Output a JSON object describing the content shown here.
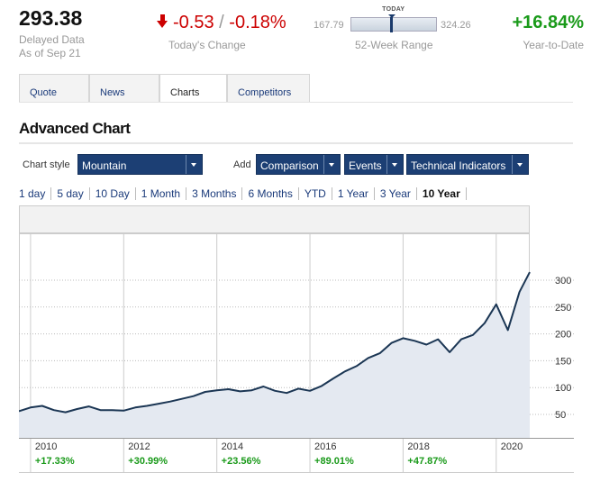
{
  "quote": {
    "price": "293.38",
    "delayed": "Delayed Data",
    "asof": "As of Sep 21",
    "change": "-0.53",
    "change_sep": "/",
    "change_pct": "-0.18%",
    "change_label": "Today's Change",
    "range_low": "167.79",
    "range_high": "324.26",
    "range_today": "TODAY",
    "range_label": "52-Week Range",
    "range_today_fraction": 0.46,
    "ytd": "+16.84%",
    "ytd_label": "Year-to-Date"
  },
  "tabs": [
    {
      "label": "Quote"
    },
    {
      "label": "News"
    },
    {
      "label": "Charts"
    },
    {
      "label": "Competitors"
    }
  ],
  "section_title": "Advanced Chart",
  "controls": {
    "chart_style_label": "Chart style",
    "chart_style_value": "Mountain",
    "add_label": "Add",
    "comparison": "Comparison",
    "events": "Events",
    "technical": "Technical Indicators"
  },
  "ranges": [
    "1 day",
    "5 day",
    "10 Day",
    "1 Month",
    "3 Months",
    "6 Months",
    "YTD",
    "1 Year",
    "3 Year",
    "10 Year"
  ],
  "selected_range": "10 Year",
  "colors": {
    "accent_dark": "#1c3f74",
    "negative": "#cc0000",
    "positive": "#1a9a1a",
    "line": "#1b3654",
    "fill": "#e4e9f1"
  },
  "chart_data": {
    "type": "area",
    "ylim": [
      0,
      330
    ],
    "yticks": [
      "300",
      "250",
      "200",
      "150",
      "100",
      "50"
    ],
    "x_years": [
      "2010",
      "2012",
      "2014",
      "2016",
      "2018",
      "2020"
    ],
    "year_returns": [
      "+17.33%",
      "+30.99%",
      "+23.56%",
      "+89.01%",
      "+47.87%"
    ],
    "x": [
      2009.75,
      2010.0,
      2010.25,
      2010.5,
      2010.75,
      2011.0,
      2011.25,
      2011.5,
      2011.75,
      2012.0,
      2012.25,
      2012.5,
      2012.75,
      2013.0,
      2013.25,
      2013.5,
      2013.75,
      2014.0,
      2014.25,
      2014.5,
      2014.75,
      2015.0,
      2015.25,
      2015.5,
      2015.75,
      2016.0,
      2016.25,
      2016.5,
      2016.75,
      2017.0,
      2017.25,
      2017.5,
      2017.75,
      2018.0,
      2018.25,
      2018.5,
      2018.75,
      2019.0,
      2019.25,
      2019.5,
      2019.75,
      2020.0,
      2020.25,
      2020.5,
      2020.72
    ],
    "values": [
      56,
      63,
      66,
      58,
      54,
      60,
      65,
      58,
      58,
      57,
      63,
      66,
      70,
      74,
      79,
      84,
      92,
      95,
      97,
      93,
      95,
      102,
      94,
      90,
      98,
      94,
      103,
      117,
      130,
      140,
      155,
      164,
      183,
      192,
      187,
      180,
      190,
      166,
      190,
      198,
      220,
      255,
      207,
      278,
      315
    ]
  }
}
